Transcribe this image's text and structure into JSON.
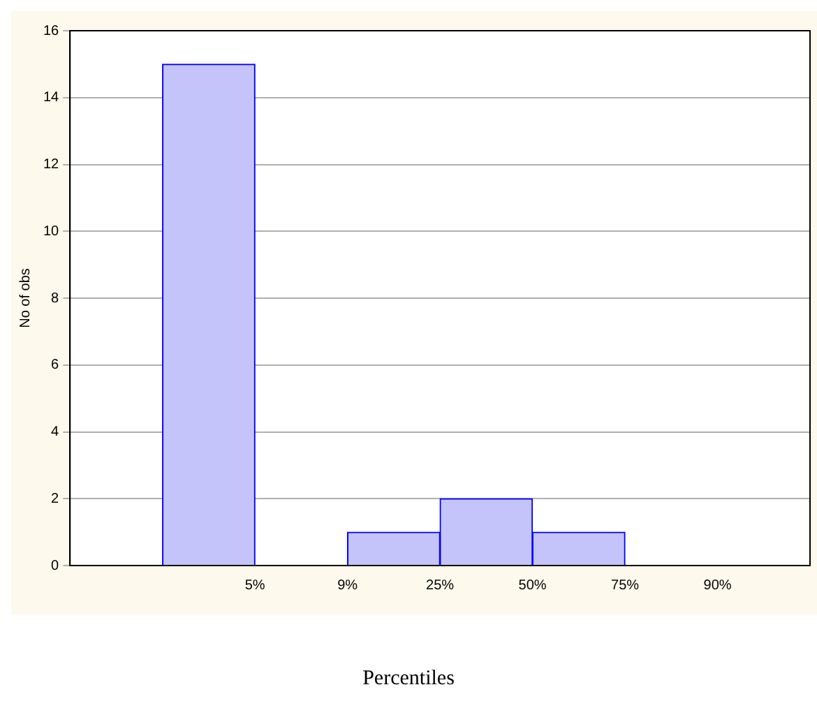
{
  "chart_data": {
    "type": "bar",
    "xlabel": "Percentiles",
    "ylabel": "No of obs",
    "categories": [
      null,
      "5%",
      "9%",
      "25%",
      "50%",
      "75%",
      "90%",
      null
    ],
    "values": [
      null,
      15,
      0,
      1,
      2,
      1,
      0,
      0
    ],
    "color": "#c4c4fa",
    "ylim": [
      0,
      16
    ],
    "yticks": [
      0,
      2,
      4,
      6,
      8,
      10,
      12,
      14,
      16
    ],
    "grid": "y",
    "legend": false
  }
}
